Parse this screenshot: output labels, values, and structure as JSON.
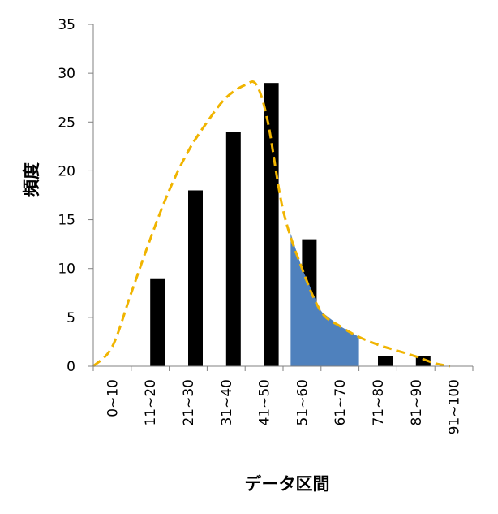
{
  "chart_data": {
    "type": "bar",
    "title": "",
    "xlabel": "データ区間",
    "ylabel": "頻度",
    "ylim": [
      0,
      35
    ],
    "yticks": [
      0,
      5,
      10,
      15,
      20,
      25,
      30,
      35
    ],
    "grid": false,
    "categories": [
      "0~10",
      "11~20",
      "21~30",
      "31~40",
      "41~50",
      "51~60",
      "61~70",
      "71~80",
      "81~90",
      "91~100"
    ],
    "values": [
      0,
      9,
      18,
      24,
      29,
      13,
      0,
      1,
      1,
      0
    ],
    "bar_color": "#000000",
    "fitted_curve": {
      "style": "dashed",
      "color": "#f0b400",
      "x": [
        0,
        0.5,
        1,
        1.5,
        2,
        2.5,
        3,
        3.5,
        4,
        4.3,
        4.6,
        5,
        5.5,
        6,
        6.5,
        7,
        7.5,
        8,
        8.5,
        9,
        9.4
      ],
      "y": [
        0,
        2,
        7.5,
        13,
        18,
        22,
        25,
        27.5,
        28.8,
        28.8,
        25,
        16,
        10,
        5.6,
        4.1,
        3,
        2.2,
        1.6,
        1.0,
        0.3,
        0
      ]
    },
    "shaded_region": {
      "color": "#4f81bd",
      "x_from": 5.2,
      "x_to": 7.0
    }
  }
}
